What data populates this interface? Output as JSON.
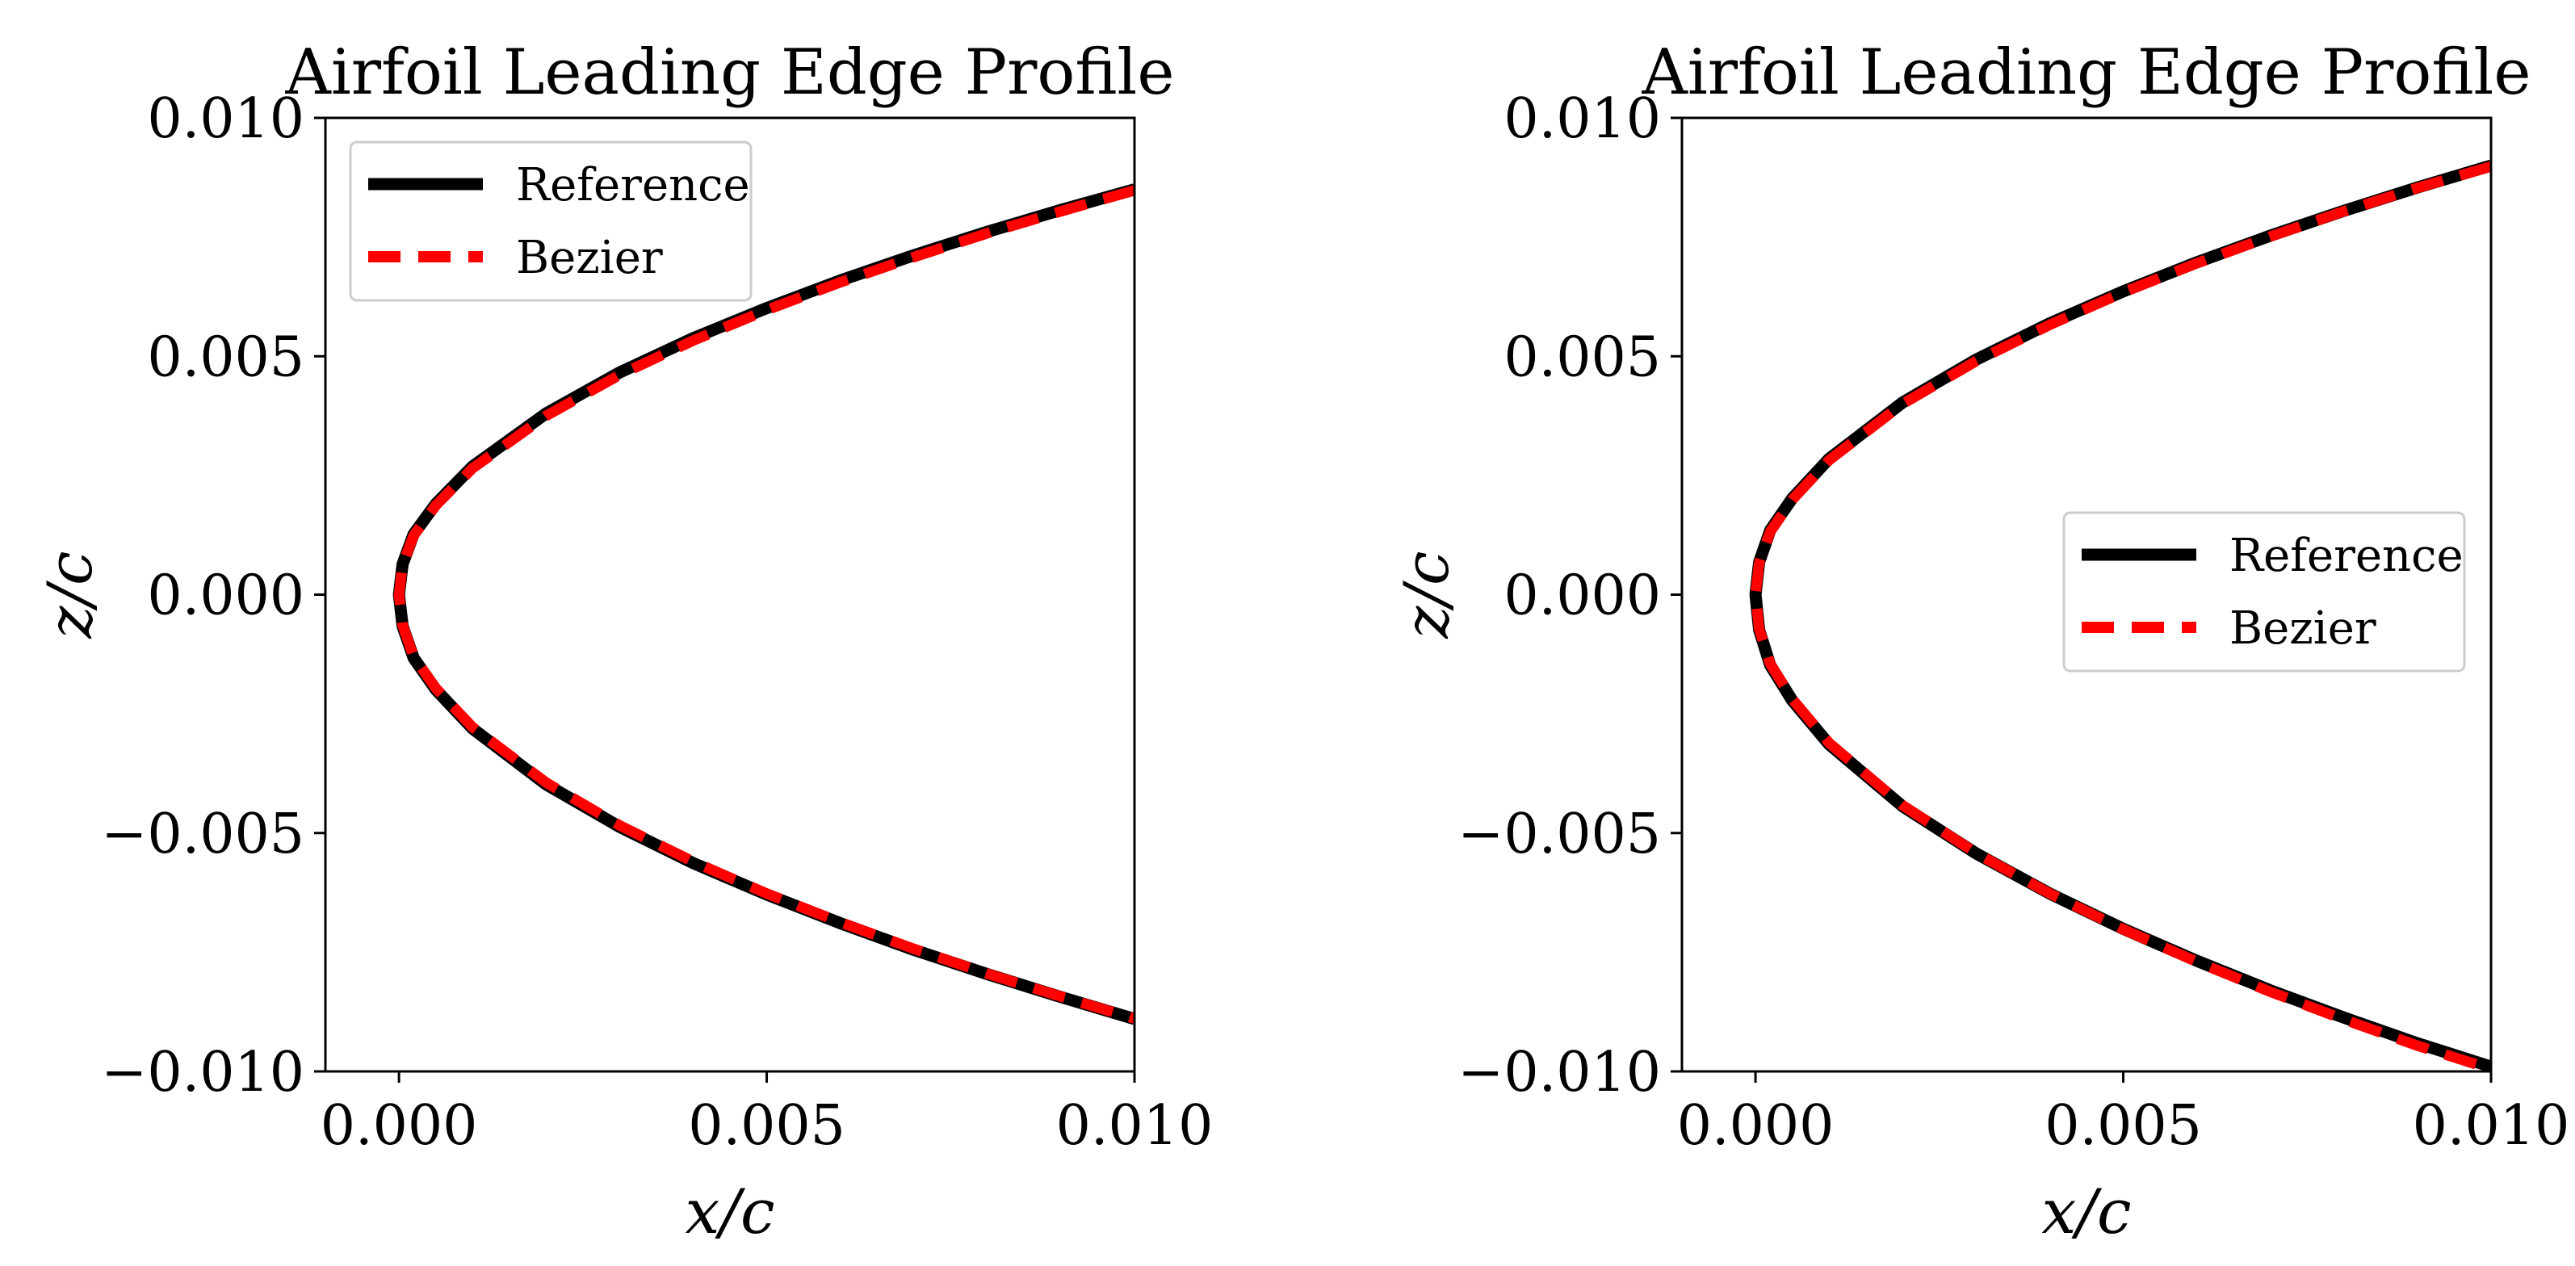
{
  "chart_data": [
    {
      "type": "line",
      "title": "Airfoil Leading Edge Profile",
      "xlabel": "x/c",
      "ylabel": "z/c",
      "xlim": [
        -0.001,
        0.01
      ],
      "ylim": [
        -0.01,
        0.01
      ],
      "xticks": [
        0.0,
        0.005,
        0.01
      ],
      "xtick_labels": [
        "0.000",
        "0.005",
        "0.010"
      ],
      "yticks": [
        0.01,
        0.005,
        0.0,
        -0.005,
        -0.01
      ],
      "ytick_labels": [
        "0.010",
        "0.005",
        "0.000",
        "−0.005",
        "−0.010"
      ],
      "grid": false,
      "legend": {
        "position": "upper left"
      },
      "series": [
        {
          "name": "Reference",
          "color": "#000000",
          "style": "solid",
          "x": [
            0.0,
            5e-05,
            0.0002,
            0.0005,
            0.001,
            0.002,
            0.003,
            0.004,
            0.005,
            0.006,
            0.007,
            0.008,
            0.009,
            0.01,
            0.0,
            5e-05,
            0.0002,
            0.0005,
            0.001,
            0.002,
            0.003,
            0.004,
            0.005,
            0.006,
            0.007,
            0.008,
            0.009,
            0.01
          ],
          "upper": {
            "x": [
              0.0,
              5e-05,
              0.0002,
              0.0005,
              0.001,
              0.002,
              0.003,
              0.004,
              0.005,
              0.006,
              0.007,
              0.008,
              0.009,
              0.01
            ],
            "y": [
              0.0,
              0.00064,
              0.00127,
              0.0019,
              0.00269,
              0.0038,
              0.00466,
              0.00538,
              0.00601,
              0.00659,
              0.00712,
              0.00761,
              0.00807,
              0.0085
            ]
          },
          "lower": {
            "x": [
              0.0,
              5e-05,
              0.0002,
              0.0005,
              0.001,
              0.002,
              0.003,
              0.004,
              0.005,
              0.006,
              0.007,
              0.008,
              0.009,
              0.01
            ],
            "y": [
              0.0,
              -0.00066,
              -0.00133,
              -0.00199,
              -0.00281,
              -0.00398,
              -0.00487,
              -0.00563,
              -0.00629,
              -0.00689,
              -0.00745,
              -0.00796,
              -0.00844,
              -0.0089
            ]
          }
        },
        {
          "name": "Bezier",
          "color": "#ff0000",
          "style": "dashed",
          "upper": {
            "x": [
              0.0,
              5e-05,
              0.0002,
              0.0005,
              0.001,
              0.002,
              0.003,
              0.004,
              0.005,
              0.006,
              0.007,
              0.008,
              0.009,
              0.01
            ],
            "y": [
              0.0,
              0.00062,
              0.00124,
              0.00187,
              0.00265,
              0.00375,
              0.00461,
              0.00533,
              0.00597,
              0.00655,
              0.00708,
              0.00758,
              0.00804,
              0.00848
            ]
          },
          "lower": {
            "x": [
              0.0,
              5e-05,
              0.0002,
              0.0005,
              0.001,
              0.002,
              0.003,
              0.004,
              0.005,
              0.006,
              0.007,
              0.008,
              0.009,
              0.01
            ],
            "y": [
              0.0,
              -0.00064,
              -0.0013,
              -0.00196,
              -0.00278,
              -0.00394,
              -0.00484,
              -0.0056,
              -0.00627,
              -0.00687,
              -0.00743,
              -0.00795,
              -0.00843,
              -0.00889
            ]
          }
        }
      ]
    },
    {
      "type": "line",
      "title": "Airfoil Leading Edge Profile",
      "xlabel": "x/c",
      "ylabel": "z/c",
      "xlim": [
        -0.001,
        0.01
      ],
      "ylim": [
        -0.01,
        0.01
      ],
      "xticks": [
        0.0,
        0.005,
        0.01
      ],
      "xtick_labels": [
        "0.000",
        "0.005",
        "0.010"
      ],
      "yticks": [
        0.01,
        0.005,
        0.0,
        -0.005,
        -0.01
      ],
      "ytick_labels": [
        "0.010",
        "0.005",
        "0.000",
        "−0.005",
        "−0.010"
      ],
      "grid": false,
      "legend": {
        "position": "center right"
      },
      "series": [
        {
          "name": "Reference",
          "color": "#000000",
          "style": "solid",
          "upper": {
            "x": [
              0.0,
              5e-05,
              0.0002,
              0.0005,
              0.001,
              0.002,
              0.003,
              0.004,
              0.005,
              0.006,
              0.007,
              0.008,
              0.009,
              0.01
            ],
            "y": [
              0.0,
              0.00068,
              0.00135,
              0.00202,
              0.00285,
              0.00403,
              0.00493,
              0.00569,
              0.00636,
              0.00697,
              0.00753,
              0.00805,
              0.00854,
              0.009
            ]
          },
          "lower": {
            "x": [
              0.0,
              5e-05,
              0.0002,
              0.0005,
              0.001,
              0.002,
              0.003,
              0.004,
              0.005,
              0.006,
              0.007,
              0.008,
              0.009,
              0.01
            ],
            "y": [
              0.0,
              -0.00074,
              -0.00148,
              -0.00222,
              -0.00314,
              -0.00444,
              -0.00543,
              -0.00627,
              -0.00701,
              -0.00768,
              -0.0083,
              -0.00887,
              -0.00941,
              -0.0099
            ]
          }
        },
        {
          "name": "Bezier",
          "color": "#ff0000",
          "style": "dashed",
          "upper": {
            "x": [
              0.0,
              5e-05,
              0.0002,
              0.0005,
              0.001,
              0.002,
              0.003,
              0.004,
              0.005,
              0.006,
              0.007,
              0.008,
              0.009,
              0.01
            ],
            "y": [
              0.0,
              0.00066,
              0.00132,
              0.00199,
              0.00282,
              0.004,
              0.0049,
              0.00566,
              0.00634,
              0.00695,
              0.00751,
              0.00804,
              0.00853,
              0.00898
            ]
          },
          "lower": {
            "x": [
              0.0,
              5e-05,
              0.0002,
              0.0005,
              0.001,
              0.002,
              0.003,
              0.004,
              0.005,
              0.006,
              0.007,
              0.008,
              0.009,
              0.01
            ],
            "y": [
              0.0,
              -0.00072,
              -0.00145,
              -0.00219,
              -0.00311,
              -0.00442,
              -0.00542,
              -0.00627,
              -0.00702,
              -0.0077,
              -0.00833,
              -0.00891,
              -0.00946,
              -0.00995
            ]
          }
        }
      ]
    }
  ]
}
